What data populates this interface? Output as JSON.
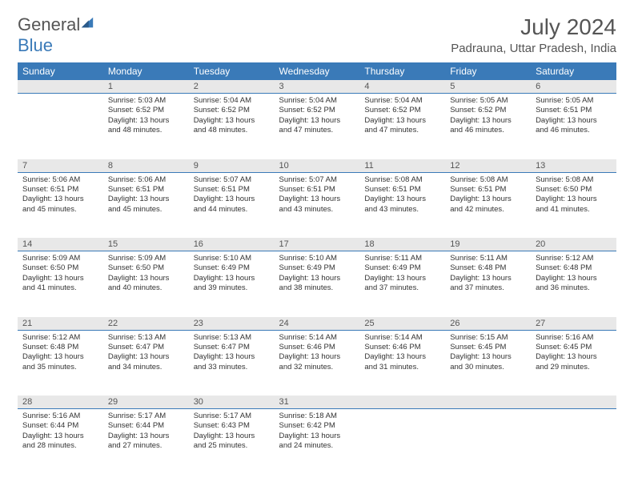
{
  "logo": {
    "text1": "General",
    "text2": "Blue"
  },
  "header": {
    "title": "July 2024",
    "location": "Padrauna, Uttar Pradesh, India"
  },
  "colors": {
    "accent": "#3a7ab8",
    "header_text": "#ffffff",
    "daynum_bg": "#e8e8e8",
    "text": "#555555"
  },
  "weekdays": [
    "Sunday",
    "Monday",
    "Tuesday",
    "Wednesday",
    "Thursday",
    "Friday",
    "Saturday"
  ],
  "weeks": [
    [
      null,
      {
        "n": "1",
        "sr": "5:03 AM",
        "ss": "6:52 PM",
        "dl": "13 hours and 48 minutes."
      },
      {
        "n": "2",
        "sr": "5:04 AM",
        "ss": "6:52 PM",
        "dl": "13 hours and 48 minutes."
      },
      {
        "n": "3",
        "sr": "5:04 AM",
        "ss": "6:52 PM",
        "dl": "13 hours and 47 minutes."
      },
      {
        "n": "4",
        "sr": "5:04 AM",
        "ss": "6:52 PM",
        "dl": "13 hours and 47 minutes."
      },
      {
        "n": "5",
        "sr": "5:05 AM",
        "ss": "6:52 PM",
        "dl": "13 hours and 46 minutes."
      },
      {
        "n": "6",
        "sr": "5:05 AM",
        "ss": "6:51 PM",
        "dl": "13 hours and 46 minutes."
      }
    ],
    [
      {
        "n": "7",
        "sr": "5:06 AM",
        "ss": "6:51 PM",
        "dl": "13 hours and 45 minutes."
      },
      {
        "n": "8",
        "sr": "5:06 AM",
        "ss": "6:51 PM",
        "dl": "13 hours and 45 minutes."
      },
      {
        "n": "9",
        "sr": "5:07 AM",
        "ss": "6:51 PM",
        "dl": "13 hours and 44 minutes."
      },
      {
        "n": "10",
        "sr": "5:07 AM",
        "ss": "6:51 PM",
        "dl": "13 hours and 43 minutes."
      },
      {
        "n": "11",
        "sr": "5:08 AM",
        "ss": "6:51 PM",
        "dl": "13 hours and 43 minutes."
      },
      {
        "n": "12",
        "sr": "5:08 AM",
        "ss": "6:51 PM",
        "dl": "13 hours and 42 minutes."
      },
      {
        "n": "13",
        "sr": "5:08 AM",
        "ss": "6:50 PM",
        "dl": "13 hours and 41 minutes."
      }
    ],
    [
      {
        "n": "14",
        "sr": "5:09 AM",
        "ss": "6:50 PM",
        "dl": "13 hours and 41 minutes."
      },
      {
        "n": "15",
        "sr": "5:09 AM",
        "ss": "6:50 PM",
        "dl": "13 hours and 40 minutes."
      },
      {
        "n": "16",
        "sr": "5:10 AM",
        "ss": "6:49 PM",
        "dl": "13 hours and 39 minutes."
      },
      {
        "n": "17",
        "sr": "5:10 AM",
        "ss": "6:49 PM",
        "dl": "13 hours and 38 minutes."
      },
      {
        "n": "18",
        "sr": "5:11 AM",
        "ss": "6:49 PM",
        "dl": "13 hours and 37 minutes."
      },
      {
        "n": "19",
        "sr": "5:11 AM",
        "ss": "6:48 PM",
        "dl": "13 hours and 37 minutes."
      },
      {
        "n": "20",
        "sr": "5:12 AM",
        "ss": "6:48 PM",
        "dl": "13 hours and 36 minutes."
      }
    ],
    [
      {
        "n": "21",
        "sr": "5:12 AM",
        "ss": "6:48 PM",
        "dl": "13 hours and 35 minutes."
      },
      {
        "n": "22",
        "sr": "5:13 AM",
        "ss": "6:47 PM",
        "dl": "13 hours and 34 minutes."
      },
      {
        "n": "23",
        "sr": "5:13 AM",
        "ss": "6:47 PM",
        "dl": "13 hours and 33 minutes."
      },
      {
        "n": "24",
        "sr": "5:14 AM",
        "ss": "6:46 PM",
        "dl": "13 hours and 32 minutes."
      },
      {
        "n": "25",
        "sr": "5:14 AM",
        "ss": "6:46 PM",
        "dl": "13 hours and 31 minutes."
      },
      {
        "n": "26",
        "sr": "5:15 AM",
        "ss": "6:45 PM",
        "dl": "13 hours and 30 minutes."
      },
      {
        "n": "27",
        "sr": "5:16 AM",
        "ss": "6:45 PM",
        "dl": "13 hours and 29 minutes."
      }
    ],
    [
      {
        "n": "28",
        "sr": "5:16 AM",
        "ss": "6:44 PM",
        "dl": "13 hours and 28 minutes."
      },
      {
        "n": "29",
        "sr": "5:17 AM",
        "ss": "6:44 PM",
        "dl": "13 hours and 27 minutes."
      },
      {
        "n": "30",
        "sr": "5:17 AM",
        "ss": "6:43 PM",
        "dl": "13 hours and 25 minutes."
      },
      {
        "n": "31",
        "sr": "5:18 AM",
        "ss": "6:42 PM",
        "dl": "13 hours and 24 minutes."
      },
      null,
      null,
      null
    ]
  ],
  "labels": {
    "sunrise": "Sunrise:",
    "sunset": "Sunset:",
    "daylight": "Daylight:"
  }
}
